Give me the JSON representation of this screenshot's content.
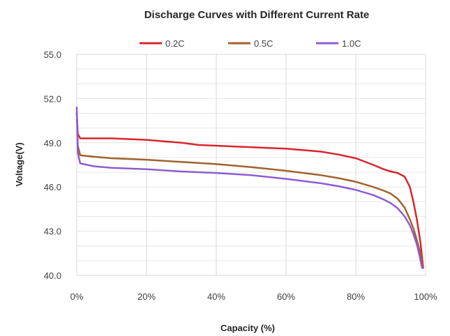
{
  "chart_data": {
    "type": "line",
    "title": "Discharge Curves with Different Current Rate",
    "xlabel": "Capacity (%)",
    "ylabel": "Voltage(V)",
    "xlim": [
      0,
      100
    ],
    "ylim": [
      40,
      55
    ],
    "x_ticks": [
      0,
      20,
      40,
      60,
      80,
      100
    ],
    "x_tick_labels": [
      "0%",
      "20%",
      "40%",
      "60%",
      "80%",
      "100%"
    ],
    "y_tick_labels": [
      "55.0",
      "52.0",
      "49.0",
      "46.0",
      "43.0",
      "40.0"
    ],
    "grid": true,
    "legend_position": "top",
    "series": [
      {
        "name": "0.2C",
        "color": "#d7262e",
        "points": [
          [
            0,
            51.0
          ],
          [
            0.3,
            49.6
          ],
          [
            1,
            49.3
          ],
          [
            5,
            49.3
          ],
          [
            10,
            49.3
          ],
          [
            20,
            49.2
          ],
          [
            25,
            49.1
          ],
          [
            30,
            49.0
          ],
          [
            35,
            48.85
          ],
          [
            40,
            48.8
          ],
          [
            45,
            48.75
          ],
          [
            50,
            48.7
          ],
          [
            55,
            48.65
          ],
          [
            60,
            48.6
          ],
          [
            65,
            48.5
          ],
          [
            70,
            48.4
          ],
          [
            75,
            48.2
          ],
          [
            80,
            47.95
          ],
          [
            85,
            47.5
          ],
          [
            88,
            47.2
          ],
          [
            90,
            47.05
          ],
          [
            92,
            46.95
          ],
          [
            94,
            46.7
          ],
          [
            95.5,
            46.0
          ],
          [
            96.5,
            45.0
          ],
          [
            97.5,
            43.8
          ],
          [
            98.5,
            42.3
          ],
          [
            99.3,
            40.5
          ]
        ]
      },
      {
        "name": "0.5C",
        "color": "#a0622d",
        "points": [
          [
            0,
            51.0
          ],
          [
            0.3,
            48.8
          ],
          [
            1,
            48.15
          ],
          [
            5,
            48.05
          ],
          [
            10,
            47.95
          ],
          [
            20,
            47.85
          ],
          [
            30,
            47.7
          ],
          [
            40,
            47.55
          ],
          [
            50,
            47.35
          ],
          [
            60,
            47.1
          ],
          [
            65,
            46.95
          ],
          [
            70,
            46.8
          ],
          [
            75,
            46.6
          ],
          [
            80,
            46.35
          ],
          [
            85,
            46.0
          ],
          [
            88,
            45.75
          ],
          [
            90,
            45.55
          ],
          [
            92,
            45.2
          ],
          [
            94,
            44.6
          ],
          [
            95.5,
            43.8
          ],
          [
            96.5,
            43.2
          ],
          [
            97.5,
            42.4
          ],
          [
            98.5,
            41.5
          ],
          [
            99.1,
            40.5
          ]
        ]
      },
      {
        "name": "1.0C",
        "color": "#8e5cd3",
        "points": [
          [
            0,
            51.4
          ],
          [
            0.3,
            48.3
          ],
          [
            1,
            47.6
          ],
          [
            5,
            47.4
          ],
          [
            10,
            47.3
          ],
          [
            20,
            47.2
          ],
          [
            30,
            47.05
          ],
          [
            40,
            46.95
          ],
          [
            50,
            46.8
          ],
          [
            60,
            46.55
          ],
          [
            65,
            46.4
          ],
          [
            70,
            46.25
          ],
          [
            75,
            46.05
          ],
          [
            80,
            45.8
          ],
          [
            85,
            45.45
          ],
          [
            88,
            45.15
          ],
          [
            90,
            44.9
          ],
          [
            92,
            44.55
          ],
          [
            94,
            44.0
          ],
          [
            95.5,
            43.4
          ],
          [
            96.5,
            42.8
          ],
          [
            97.5,
            42.1
          ],
          [
            98.3,
            41.3
          ],
          [
            99.0,
            40.5
          ]
        ]
      }
    ]
  }
}
